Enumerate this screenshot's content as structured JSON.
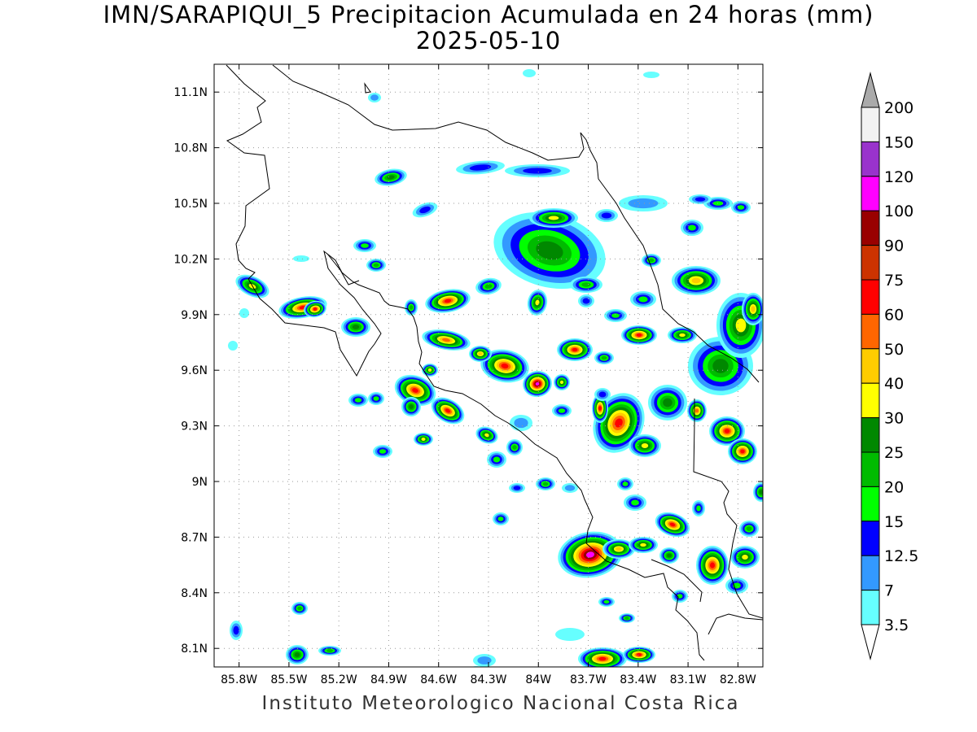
{
  "header": {
    "title_line1": "IMN/SARAPIQUI_5 Precipitacion Acumulada en 24 horas (mm)",
    "title_line2": "2025-05-10"
  },
  "footer": {
    "credit": "Instituto Meteorologico Nacional Costa Rica"
  },
  "map": {
    "x_ticks": [
      "85.8W",
      "85.5W",
      "85.2W",
      "84.9W",
      "84.6W",
      "84.3W",
      "84W",
      "83.7W",
      "83.4W",
      "83.1W",
      "82.8W"
    ],
    "y_ticks": [
      "11.1N",
      "10.8N",
      "10.5N",
      "10.2N",
      "9.9N",
      "9.6N",
      "9.3N",
      "9N",
      "8.7N",
      "8.4N",
      "8.1N"
    ],
    "extent": {
      "lon_min": -85.95,
      "lon_max": -82.65,
      "lat_min": 8.0,
      "lat_max": 11.25
    }
  },
  "legend": {
    "levels": [
      "200",
      "150",
      "120",
      "100",
      "90",
      "75",
      "60",
      "50",
      "40",
      "30",
      "25",
      "20",
      "15",
      "12.5",
      "7",
      "3.5"
    ],
    "colors": [
      "#aaaaaa",
      "#f2f2f2",
      "#9933cc",
      "#ff00ff",
      "#990000",
      "#cc3300",
      "#ff0000",
      "#ff6600",
      "#ffcc00",
      "#ffff00",
      "#008800",
      "#00bb00",
      "#00ff00",
      "#0000ff",
      "#3399ff",
      "#66ffff"
    ]
  }
}
